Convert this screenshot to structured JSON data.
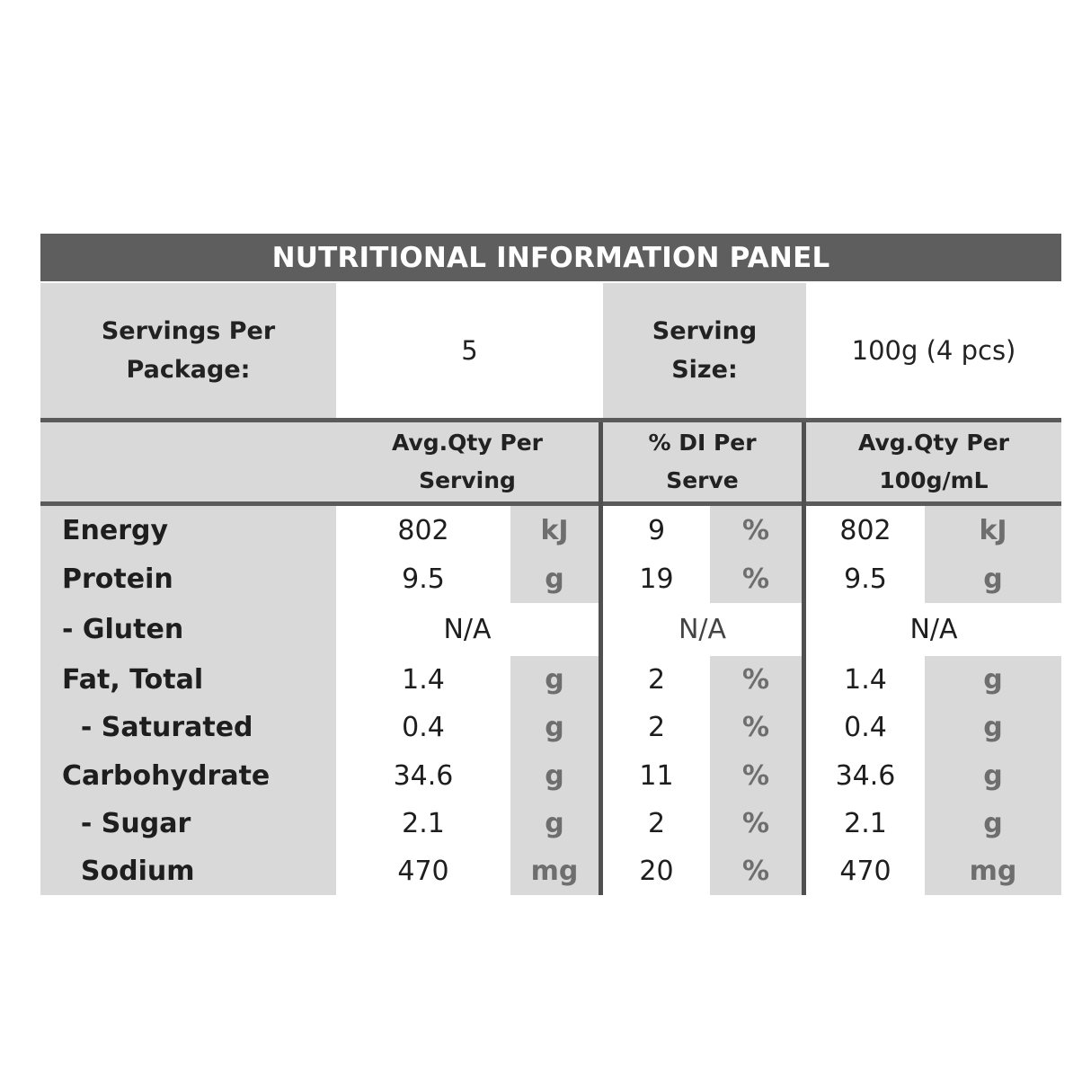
{
  "title": "NUTRITIONAL INFORMATION PANEL",
  "servings": {
    "per_package_label_1": "Servings Per",
    "per_package_label_2": "Package:",
    "per_package_value": "5",
    "size_label_1": "Serving",
    "size_label_2": "Size:",
    "size_value": "100g (4 pcs)"
  },
  "columns": {
    "per_serving_1": "Avg.Qty Per",
    "per_serving_2": "Serving",
    "di_1": "% DI Per",
    "di_2": "Serve",
    "per_100_1": "Avg.Qty Per",
    "per_100_2": "100g/mL"
  },
  "rows": [
    {
      "name": "Energy",
      "serve": "802",
      "serve_unit": "kJ",
      "di": "9",
      "di_unit": "%",
      "per100": "802",
      "per100_unit": "kJ"
    },
    {
      "name": "Protein",
      "serve": "9.5",
      "serve_unit": "g",
      "di": "19",
      "di_unit": "%",
      "per100": "9.5",
      "per100_unit": "g"
    },
    {
      "name": "- Gluten",
      "serve": "N/A",
      "di": "N/A",
      "per100": "N/A"
    },
    {
      "name": "Fat, Total",
      "serve": "1.4",
      "serve_unit": "g",
      "di": "2",
      "di_unit": "%",
      "per100": "1.4",
      "per100_unit": "g"
    },
    {
      "name": "  - Saturated",
      "serve": "0.4",
      "serve_unit": "g",
      "di": "2",
      "di_unit": "%",
      "per100": "0.4",
      "per100_unit": "g"
    },
    {
      "name": "Carbohydrate",
      "serve": "34.6",
      "serve_unit": "g",
      "di": "11",
      "di_unit": "%",
      "per100": "34.6",
      "per100_unit": "g"
    },
    {
      "name": "  - Sugar",
      "serve": "2.1",
      "serve_unit": "g",
      "di": "2",
      "di_unit": "%",
      "per100": "2.1",
      "per100_unit": "g"
    },
    {
      "name": "  Sodium",
      "serve": "470",
      "serve_unit": "mg",
      "di": "20",
      "di_unit": "%",
      "per100": "470",
      "per100_unit": "mg"
    }
  ],
  "colors": {
    "title_bar": "#5e5e5e",
    "cell_gray": "#d9d9d9",
    "unit_text": "#6e6e6e"
  }
}
